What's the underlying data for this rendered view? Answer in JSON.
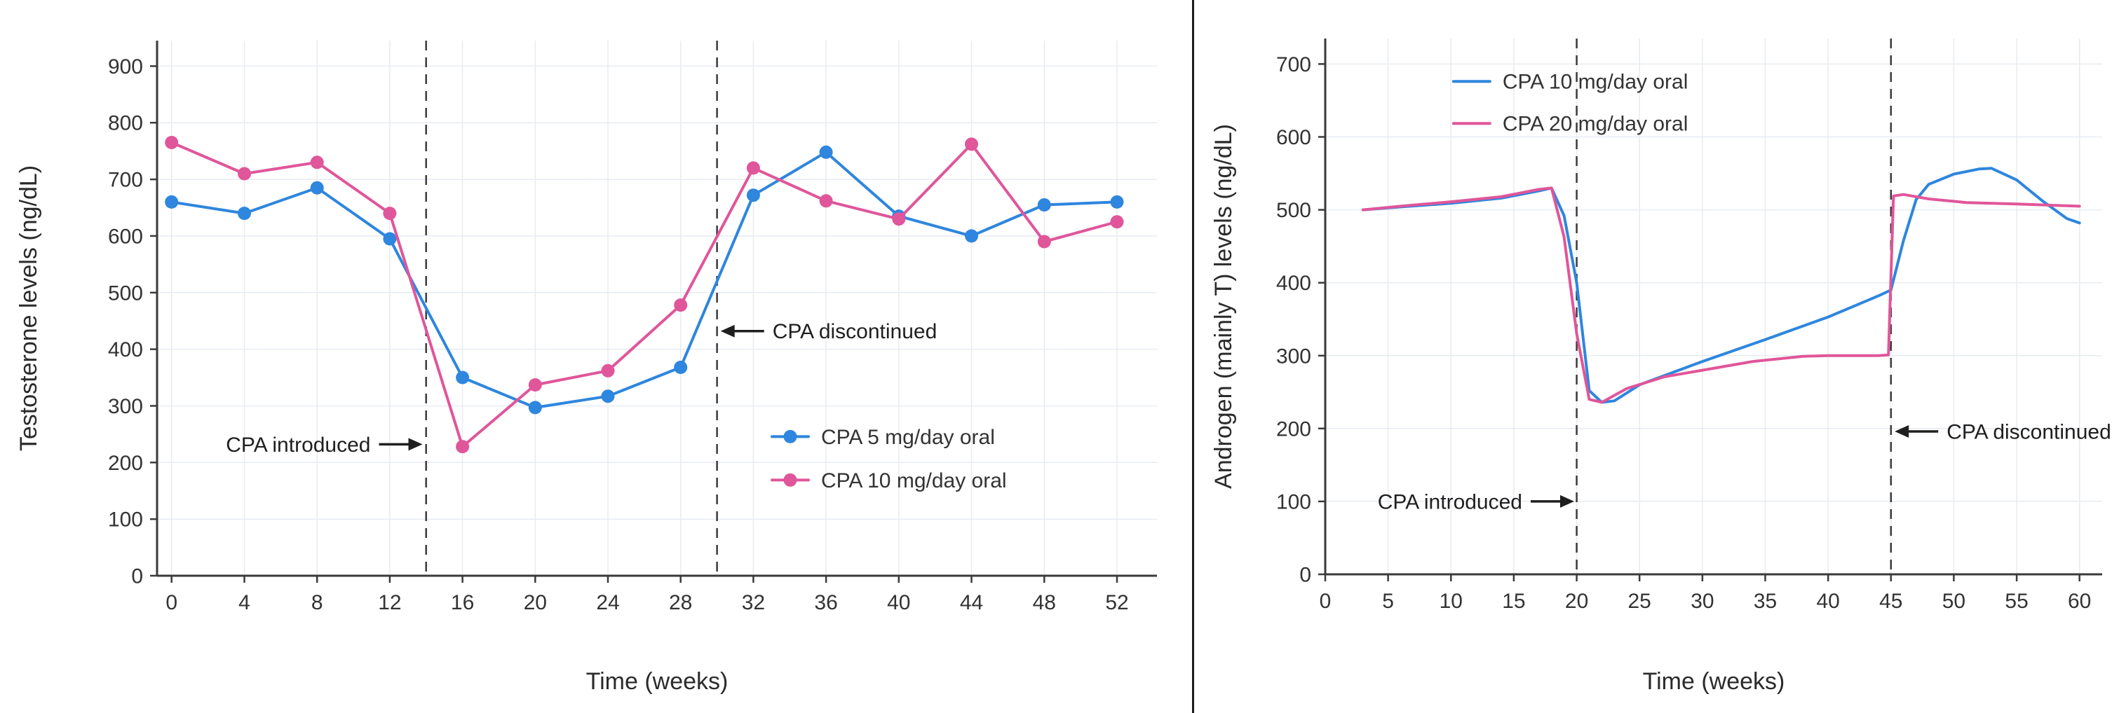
{
  "figure": {
    "background": "#ffffff",
    "divider_color": "#1b1b1b"
  },
  "theme": {
    "grid_color": "#e7ecf2",
    "axis_color": "#3a3a3a",
    "tick_text_color": "#333333",
    "label_text_color": "#2b2b2b",
    "annotation_color": "#1f1f1f",
    "vline_color": "#3a3a3a",
    "accent_blue": "#2e86de",
    "accent_pink": "#e0569a"
  },
  "chart_data": [
    {
      "type": "line",
      "title": "",
      "xlabel": "Time (weeks)",
      "ylabel": "Testosterone levels (ng/dL)",
      "xlim": [
        -0.8,
        54.2
      ],
      "ylim": [
        0,
        945
      ],
      "xticks": [
        0,
        4,
        8,
        12,
        16,
        20,
        24,
        28,
        32,
        36,
        40,
        44,
        48,
        52
      ],
      "yticks": [
        0,
        100,
        200,
        300,
        400,
        500,
        600,
        700,
        800,
        900
      ],
      "grid": true,
      "legend_position": "inside-lower-right",
      "series": [
        {
          "name": "CPA 5 mg/day oral",
          "color": "#2e86de",
          "marker": true,
          "x": [
            0,
            4,
            8,
            12,
            16,
            20,
            24,
            28,
            32,
            36,
            40,
            44,
            48,
            52
          ],
          "values": [
            660,
            640,
            685,
            595,
            350,
            297,
            317,
            368,
            672,
            748,
            635,
            600,
            655,
            660
          ]
        },
        {
          "name": "CPA 10 mg/day oral",
          "color": "#e0569a",
          "marker": true,
          "x": [
            0,
            4,
            8,
            12,
            16,
            20,
            24,
            28,
            32,
            36,
            40,
            44,
            48,
            52
          ],
          "values": [
            765,
            710,
            730,
            640,
            228,
            337,
            362,
            478,
            720,
            662,
            630,
            762,
            590,
            625
          ]
        }
      ],
      "vlines": [
        14,
        30
      ],
      "annotations": [
        {
          "text": "CPA introduced",
          "arrow": "right",
          "x": 13.8,
          "y": 232
        },
        {
          "text": "CPA discontinued",
          "arrow": "left",
          "x": 30.2,
          "y": 432
        }
      ]
    },
    {
      "type": "line",
      "title": "",
      "xlabel": "Time (weeks)",
      "ylabel": "Androgen (mainly T) levels (ng/dL)",
      "xlim": [
        0,
        61.8
      ],
      "ylim": [
        0,
        735
      ],
      "xticks": [
        0,
        5,
        10,
        15,
        20,
        25,
        30,
        35,
        40,
        45,
        50,
        55,
        60
      ],
      "yticks": [
        0,
        100,
        200,
        300,
        400,
        500,
        600,
        700
      ],
      "grid": true,
      "legend_position": "inside-upper-left",
      "series": [
        {
          "name": "CPA 10 mg/day oral",
          "color": "#2e86de",
          "marker": false,
          "x": [
            3,
            6,
            10,
            14,
            17,
            18,
            19,
            20,
            21,
            22,
            23,
            25,
            30,
            35,
            40,
            44,
            45,
            46,
            47,
            48,
            50,
            52,
            53,
            55,
            57,
            59,
            60
          ],
          "values": [
            500,
            504,
            509,
            516,
            526,
            530,
            492,
            400,
            252,
            236,
            238,
            260,
            292,
            322,
            353,
            382,
            390,
            458,
            514,
            535,
            549,
            556,
            557,
            541,
            513,
            488,
            482
          ]
        },
        {
          "name": "CPA 20 mg/day oral",
          "color": "#e0569a",
          "marker": false,
          "x": [
            3,
            6,
            10,
            14,
            17,
            18,
            19,
            20,
            21,
            22,
            24,
            27,
            30,
            34,
            38,
            40,
            44,
            44.8,
            45.2,
            46,
            48,
            51,
            55,
            60
          ],
          "values": [
            500,
            505,
            511,
            518,
            528,
            530,
            463,
            330,
            240,
            236,
            255,
            271,
            280,
            292,
            299,
            300,
            300,
            301,
            519,
            521,
            515,
            510,
            508,
            505
          ]
        }
      ],
      "vlines": [
        20,
        45
      ],
      "annotations": [
        {
          "text": "CPA introduced",
          "arrow": "right",
          "x": 19.8,
          "y": 100
        },
        {
          "text": "CPA discontinued",
          "arrow": "left",
          "x": 45.3,
          "y": 196
        }
      ]
    }
  ]
}
